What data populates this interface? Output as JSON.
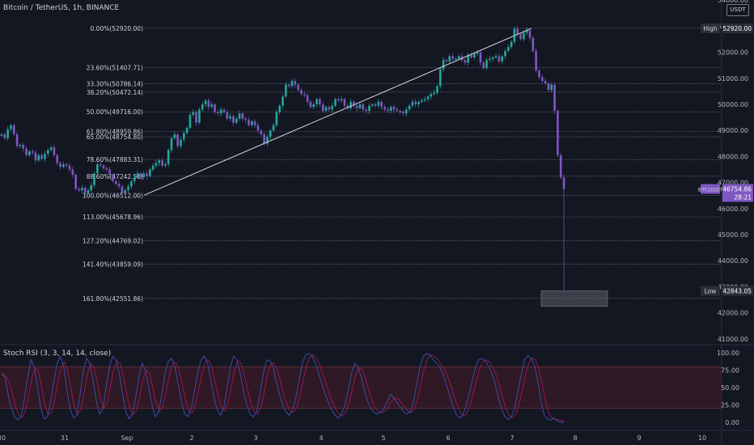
{
  "header": {
    "title": "Bitcoin / TetherUS, 1h, BINANCE",
    "currency": "USDT"
  },
  "rsi": {
    "label": "Stoch RSI (3, 3, 14, 14, close)",
    "ticks": [
      "100.00",
      "75.00",
      "50.00",
      "25.00",
      "0.00"
    ],
    "levels": [
      80,
      20
    ]
  },
  "chart_data": {
    "type": "candlestick",
    "symbol": "BTCUSDT",
    "interval": "1h",
    "y_axis_ticks": [
      "54000.00",
      "53000.00",
      "52000.00",
      "51000.00",
      "50000.00",
      "49000.00",
      "48000.00",
      "47000.00",
      "46000.00",
      "45000.00",
      "44000.00",
      "43000.00",
      "42000.00",
      "41000.00"
    ],
    "y_axis_values": [
      54000,
      53000,
      52000,
      51000,
      50000,
      49000,
      48000,
      47000,
      46000,
      45000,
      44000,
      43000,
      42000,
      41000
    ],
    "x_axis_ticks": [
      "30",
      "31",
      "Sep",
      "2",
      "3",
      "4",
      "5",
      "6",
      "7",
      "8",
      "9",
      "10"
    ],
    "fibonacci": [
      {
        "label": "0.00%(52920.00)",
        "price": 52920.0
      },
      {
        "label": "23.60%(51407.71)",
        "price": 51407.71
      },
      {
        "label": "33.30%(50786.14)",
        "price": 50786.14
      },
      {
        "label": "38.20%(50472.14)",
        "price": 50472.14
      },
      {
        "label": "50.00%(49716.00)",
        "price": 49716.0
      },
      {
        "label": "61.80%(48959.86)",
        "price": 48959.86
      },
      {
        "label": "65.00%(48754.80)",
        "price": 48754.8
      },
      {
        "label": "78.60%(47883.31)",
        "price": 47883.31
      },
      {
        "label": "88.60%(47242.51)",
        "price": 47242.51
      },
      {
        "label": "100.00%(46512.00)",
        "price": 46512.0
      },
      {
        "label": "113.00%(45678.96)",
        "price": 45678.96
      },
      {
        "label": "127.20%(44769.02)",
        "price": 44769.02
      },
      {
        "label": "141.40%(43859.09)",
        "price": 43859.09
      },
      {
        "label": "161.80%(42551.86)",
        "price": 42551.86
      }
    ],
    "price_tags": [
      {
        "label": "High",
        "value": "52920.00",
        "price": 52920
      },
      {
        "label": "BTCUSDT",
        "value": "46754.86",
        "price": 46754.86,
        "countdown": "28:21",
        "color": "#7e57c2"
      },
      {
        "label": "Low",
        "value": "42843.05",
        "price": 42843.05
      }
    ],
    "trend_line": {
      "from_price": 46512,
      "to_price": 52920
    },
    "zone": {
      "from_price": 42843,
      "to_price": 42250
    },
    "candles": [
      48850,
      48700,
      49050,
      49200,
      48850,
      48400,
      48450,
      48300,
      48050,
      48200,
      48150,
      47850,
      48050,
      47900,
      48100,
      48250,
      48350,
      48050,
      47750,
      47600,
      47700,
      47650,
      47500,
      47300,
      46750,
      46700,
      46800,
      46600,
      46700,
      46900,
      47350,
      47700,
      47650,
      47550,
      47500,
      47300,
      47050,
      46950,
      46850,
      46600,
      46700,
      46850,
      47050,
      47200,
      47350,
      47200,
      47350,
      47250,
      47500,
      47650,
      47750,
      47850,
      47650,
      47700,
      48250,
      48700,
      48850,
      48400,
      48650,
      48900,
      49100,
      49600,
      49700,
      49300,
      49800,
      50000,
      50150,
      49900,
      50000,
      49700,
      49650,
      49800,
      49700,
      49450,
      49550,
      49300,
      49450,
      49650,
      49450,
      49400,
      49200,
      49350,
      49200,
      49000,
      48850,
      48500,
      48750,
      49000,
      49200,
      49700,
      49950,
      50300,
      50750,
      50700,
      50900,
      50750,
      50550,
      50400,
      50350,
      50100,
      49900,
      50000,
      50200,
      50000,
      49750,
      49900,
      49800,
      49950,
      50200,
      50150,
      50200,
      49950,
      49850,
      50100,
      49950,
      49850,
      50000,
      49800,
      49750,
      49950,
      50000,
      49950,
      50100,
      49900,
      49800,
      49750,
      49900,
      49800,
      49750,
      49700,
      49650,
      49800,
      49950,
      50100,
      50000,
      50100,
      50150,
      50200,
      50300,
      50400,
      50450,
      50700,
      51350,
      51700,
      51650,
      51850,
      51750,
      51750,
      51850,
      51700,
      51600,
      51900,
      51800,
      51950,
      52000,
      51600,
      51400,
      51700,
      51750,
      51800,
      51850,
      51650,
      51850,
      52050,
      52200,
      52400,
      52900,
      52700,
      52500,
      52750,
      52850,
      52550,
      52050,
      51300,
      51050,
      50900,
      50800,
      50550,
      50750,
      49750,
      48050,
      47200,
      46750
    ],
    "rsi_k": [
      70,
      65,
      40,
      20,
      8,
      3,
      10,
      35,
      65,
      90,
      80,
      50,
      20,
      5,
      8,
      30,
      60,
      85,
      95,
      80,
      45,
      18,
      6,
      10,
      40,
      75,
      92,
      85,
      60,
      30,
      12,
      20,
      50,
      80,
      95,
      90,
      70,
      40,
      15,
      5,
      12,
      35,
      65,
      85,
      75,
      50,
      25,
      8,
      15,
      40,
      70,
      88,
      92,
      80,
      55,
      30,
      12,
      8,
      20,
      45,
      72,
      90,
      95,
      85,
      60,
      35,
      18,
      10,
      22,
      50,
      80,
      95,
      90,
      70,
      45,
      25,
      12,
      8,
      15,
      40,
      70,
      88,
      90,
      80,
      60,
      40,
      25,
      15,
      10,
      18,
      35,
      60,
      85,
      97,
      99,
      95,
      85,
      70,
      55,
      40,
      28,
      18,
      10,
      6,
      12,
      25,
      45,
      70,
      85,
      80,
      65,
      45,
      30,
      20,
      14,
      12,
      15,
      20,
      30,
      40,
      35,
      28,
      22,
      15,
      12,
      15,
      30,
      55,
      80,
      95,
      99,
      97,
      90,
      85,
      80,
      70,
      55,
      40,
      25,
      12,
      6,
      10,
      22,
      40,
      60,
      80,
      90,
      92,
      88,
      80,
      70,
      55,
      35,
      18,
      8,
      4,
      8,
      22,
      45,
      70,
      90,
      96,
      92,
      82,
      60,
      30,
      10,
      5,
      3,
      6,
      2,
      0,
      0
    ]
  }
}
